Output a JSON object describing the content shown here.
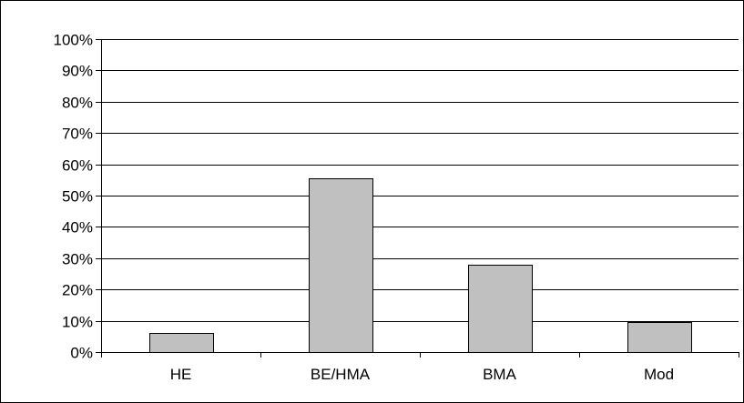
{
  "chart_data": {
    "type": "bar",
    "categories": [
      "HE",
      "BE/HMA",
      "BMA",
      "Mod"
    ],
    "values": [
      6,
      55.5,
      28,
      9.5
    ],
    "ylim": [
      0,
      100
    ],
    "y_ticks": [
      "0%",
      "10%",
      "20%",
      "30%",
      "40%",
      "50%",
      "60%",
      "70%",
      "80%",
      "90%",
      "100%"
    ],
    "grid": true,
    "legend": "none",
    "bar_color": "#c0c0c0",
    "bar_edge_color": "#000000",
    "grid_color": "#000000"
  }
}
